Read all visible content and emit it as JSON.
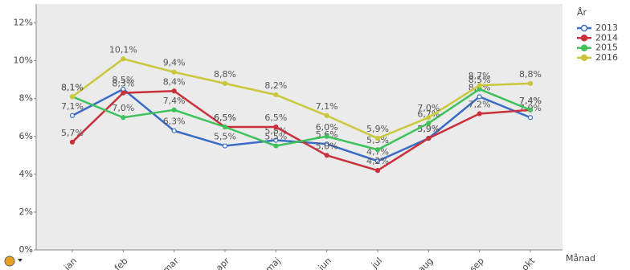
{
  "chart_data": {
    "type": "line",
    "x_label": "Månad",
    "legend_title": "År",
    "legend_position": "right",
    "categories": [
      "jan",
      "feb",
      "mar",
      "apr",
      "maj",
      "jun",
      "jul",
      "aug",
      "sep",
      "okt"
    ],
    "ylim": [
      0,
      13
    ],
    "yticks": [
      {
        "value": 0,
        "label": "0%"
      },
      {
        "value": 2,
        "label": "2%"
      },
      {
        "value": 4,
        "label": "4%"
      },
      {
        "value": 6,
        "label": "6%"
      },
      {
        "value": 8,
        "label": "8%"
      },
      {
        "value": 10,
        "label": "10%"
      },
      {
        "value": 12,
        "label": "12%"
      }
    ],
    "series": [
      {
        "name": "2013",
        "color": "#3b6cc5",
        "values": [
          7.1,
          8.5,
          6.3,
          5.5,
          5.8,
          5.6,
          4.7,
          5.9,
          8.1,
          7.0
        ],
        "value_labels": [
          "7,1%",
          "8,5%",
          "6,3%",
          "5,5%",
          "5,8%",
          "5,6%",
          "4,7%",
          "5,9%",
          "8,1%",
          "7,0%"
        ]
      },
      {
        "name": "2014",
        "color": "#c9303c",
        "values": [
          5.7,
          8.3,
          8.4,
          6.5,
          6.5,
          5.0,
          4.2,
          5.9,
          7.2,
          7.4
        ],
        "value_labels": [
          "5,7%",
          "8,3%",
          "8,4%",
          "6,5%",
          "6,5%",
          "5,0%",
          "4,2%",
          "5,9%",
          "7,2%",
          "7,4%"
        ]
      },
      {
        "name": "2015",
        "color": "#3fc25c",
        "values": [
          8.1,
          7.0,
          7.4,
          6.5,
          5.5,
          6.0,
          5.3,
          6.7,
          8.5,
          7.4
        ],
        "value_labels": [
          "8,1%",
          "7,0%",
          "7,4%",
          "6,5%",
          "5,5%",
          "6,0%",
          "5,3%",
          "6,7%",
          "8,5%",
          "7,4%"
        ]
      },
      {
        "name": "2016",
        "color": "#c9c83d",
        "values": [
          8.1,
          10.1,
          9.4,
          8.8,
          8.2,
          7.1,
          5.9,
          7.0,
          8.7,
          8.8
        ],
        "value_labels": [
          "8,1%",
          "10,1%",
          "9,4%",
          "8,8%",
          "8,2%",
          "7,1%",
          "5,9%",
          "7,0%",
          "8,7%",
          "8,8%"
        ]
      }
    ]
  }
}
